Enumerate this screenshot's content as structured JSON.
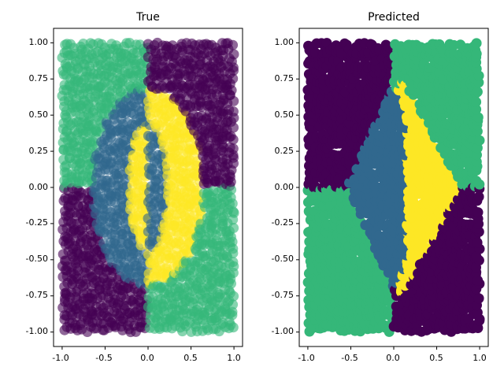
{
  "chart_data": [
    {
      "type": "scatter",
      "title": "True",
      "xlabel": "",
      "ylabel": "",
      "xlim": [
        -1.1,
        1.1
      ],
      "ylim": [
        -1.1,
        1.1
      ],
      "xticks": [
        "-1.0",
        "-0.5",
        "0.0",
        "0.5",
        "1.0"
      ],
      "yticks": [
        "-1.00",
        "-0.75",
        "-0.50",
        "-0.25",
        "0.00",
        "0.25",
        "0.50",
        "0.75",
        "1.00"
      ],
      "grid": false,
      "legend": "none",
      "point_alpha": 0.6,
      "x_range": [
        -1.0,
        1.0
      ],
      "y_range": [
        -1.0,
        1.0
      ],
      "class_colors": [
        "#440154",
        "#31688e",
        "#35b779",
        "#fde725"
      ],
      "class_rule": "dark purple where x*y > 0, green where x*y < 0; steel blue inside the ellipse x^2/0.65^2 + y^2/0.68^2 < 1 for x < 0 and yellow for x > 0; yellow inside the inner ellipse x^2/0.22^2 + y^2/0.45^2 < 1 for x < 0 and steel blue for x > 0"
    },
    {
      "type": "scatter",
      "title": "Predicted",
      "xlabel": "",
      "ylabel": "",
      "xlim": [
        -1.1,
        1.1
      ],
      "ylim": [
        -1.1,
        1.1
      ],
      "xticks": [
        "-1.0",
        "-0.5",
        "0.0",
        "0.5",
        "1.0"
      ],
      "yticks": [
        "-1.00",
        "-0.75",
        "-0.50",
        "-0.25",
        "0.00",
        "0.25",
        "0.50",
        "0.75",
        "1.00"
      ],
      "grid": false,
      "legend": "none",
      "point_alpha": 1.0,
      "x_range": [
        -1.0,
        1.0
      ],
      "y_range": [
        -1.0,
        1.0
      ],
      "class_colors": [
        "#440154",
        "#31688e",
        "#35b779",
        "#fde725"
      ],
      "class_rule": "steel blue inside the diamond |x|/0.55 + |y|/0.72 < 1 for x < 0.15; yellow inside the diamond |x-0.1|/0.7 + |y|/0.75 < 1; otherwise dark purple for upper-left and lower-right, green for upper-right and lower-left"
    }
  ]
}
